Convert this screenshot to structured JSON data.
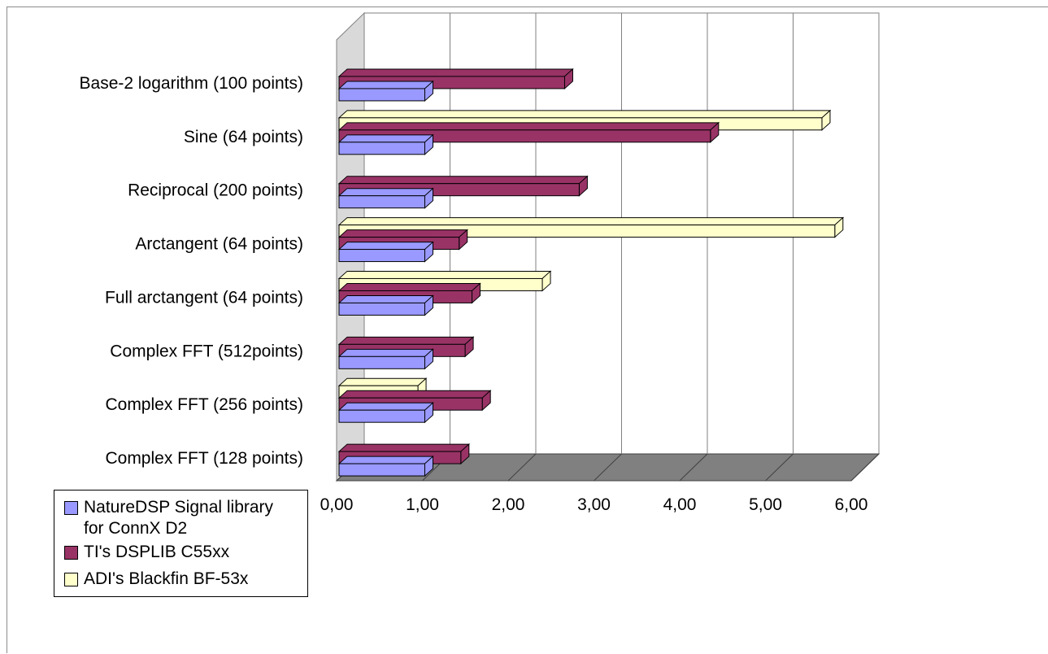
{
  "chart_data": {
    "type": "bar",
    "orientation": "horizontal",
    "style": "3d",
    "categories": [
      "Base-2 logarithm (100 points)",
      "Sine (64 points)",
      "Reciprocal (200 points)",
      "Arctangent (64 points)",
      "Full arctangent (64 points)",
      "Complex FFT (512points)",
      "Complex FFT (256 points)",
      "Complex FFT (128 points)"
    ],
    "series": [
      {
        "name": "NatureDSP Signal library for ConnX D2",
        "color": "#9999ff",
        "values": [
          1.0,
          1.0,
          1.0,
          1.0,
          1.0,
          1.0,
          1.0,
          1.0
        ]
      },
      {
        "name": "TI's DSPLIB C55xx",
        "color": "#993366",
        "values": [
          2.63,
          4.33,
          2.8,
          1.4,
          1.55,
          1.47,
          1.67,
          1.42
        ]
      },
      {
        "name": "ADI's Blackfin BF-53x",
        "color": "#ffffcc",
        "values": [
          null,
          5.63,
          null,
          5.78,
          2.37,
          null,
          0.92,
          null
        ]
      }
    ],
    "xlim": [
      0,
      6
    ],
    "xticks": [
      "0,00",
      "1,00",
      "2,00",
      "3,00",
      "4,00",
      "5,00",
      "6,00"
    ],
    "grid": true,
    "legend_position": "bottom-left",
    "title": "",
    "xlabel": "",
    "ylabel": ""
  }
}
